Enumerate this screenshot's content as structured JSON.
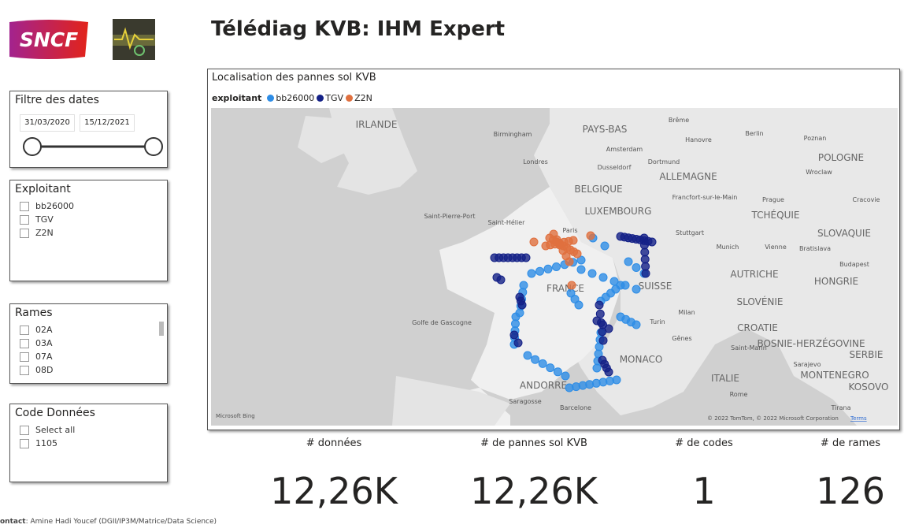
{
  "header": {
    "logo_text": "SNCF",
    "title": "Télédiag KVB: IHM Expert"
  },
  "filters": {
    "dates": {
      "title": "Filtre des dates",
      "start": "31/03/2020",
      "end": "15/12/2021"
    },
    "exploitant": {
      "title": "Exploitant",
      "items": [
        "bb26000",
        "TGV",
        "Z2N"
      ]
    },
    "rames": {
      "title": "Rames",
      "items": [
        "02A",
        "03A",
        "07A",
        "08D"
      ]
    },
    "code": {
      "title": "Code Données",
      "items": [
        "Select all",
        "1105"
      ]
    }
  },
  "map": {
    "title": "Localisation des pannes sol KVB",
    "legend": {
      "title": "exploitant",
      "series": [
        {
          "name": "bb26000",
          "color": "#2e8de6"
        },
        {
          "name": "TGV",
          "color": "#142187"
        },
        {
          "name": "Z2N",
          "color": "#e0703f"
        }
      ]
    },
    "labels": [
      "IRLANDE",
      "Birmingham",
      "PAYS-BAS",
      "Amsterdam",
      "Londres",
      "Dusseldorf",
      "Dortmund",
      "Brême",
      "Hanovre",
      "Berlin",
      "Poznan",
      "POLOGNE",
      "Wroclaw",
      "ALLEMAGNE",
      "BELGIQUE",
      "Francfort-sur-le-Main",
      "Prague",
      "Cracovie",
      "TCHÉQUIE",
      "LUXEMBOURG",
      "Saint-Pierre-Port",
      "Saint-Hélier",
      "Paris",
      "Stuttgart",
      "SLOVAQUIE",
      "Munich",
      "Vienne",
      "Bratislava",
      "Budapest",
      "AUTRICHE",
      "HONGRIE",
      "FRANCE",
      "SUISSE",
      "SLOVÉNIE",
      "Golfe de Gascogne",
      "Milan",
      "Turin",
      "CROATIE",
      "Gênes",
      "Saint-Marin",
      "BOSNIE-HERZÉGOVINE",
      "SERBIE",
      "MONACO",
      "Sarajevo",
      "MONTENEGRO",
      "ITALIE",
      "ANDORRE",
      "KOSOVO",
      "Rome",
      "Saragosse",
      "Barcelone",
      "Tirana"
    ],
    "provider": "Microsoft Bing",
    "attribution": "© 2022 TomTom, © 2022 Microsoft Corporation",
    "terms": "Terms"
  },
  "kpis": [
    {
      "label": "# données",
      "value": "12,26K"
    },
    {
      "label": "# de pannes sol KVB",
      "value": "12,26K"
    },
    {
      "label": "# de codes",
      "value": "1"
    },
    {
      "label": "# de rames",
      "value": "126"
    }
  ],
  "footer": {
    "contact_label": "ontact",
    "contact": ": Amine Hadi Youcef (DGII/IP3M/Matrice/Data Science)"
  }
}
